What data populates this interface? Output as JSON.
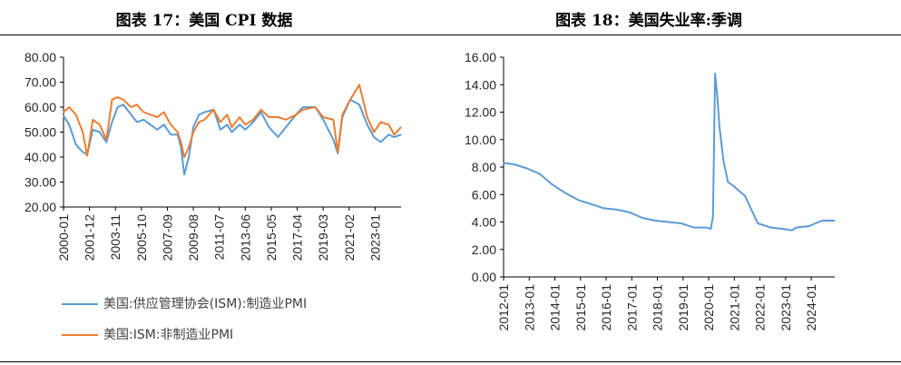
{
  "titles": {
    "left": "图表 17：美国 CPI 数据",
    "right": "图表 18：美国失业率:季调"
  },
  "colors": {
    "manufacturing": "#5b9bd5",
    "non_manufacturing": "#ed7d31",
    "unemployment": "#5b9bd5",
    "axis": "#000000"
  },
  "chart_data": [
    {
      "type": "line",
      "title": "图表 17：美国 CPI 数据",
      "xlabel": "",
      "ylabel": "",
      "ylim": [
        20,
        80
      ],
      "yticks": [
        "20.00",
        "30.00",
        "40.00",
        "50.00",
        "60.00",
        "70.00",
        "80.00"
      ],
      "xticks": [
        "2000-01",
        "2001-12",
        "2003-11",
        "2005-10",
        "2007-09",
        "2009-08",
        "2011-07",
        "2013-06",
        "2015-05",
        "2017-04",
        "2019-03",
        "2021-02",
        "2023-01"
      ],
      "xrange": [
        "2000-01",
        "2024-12"
      ],
      "grid": false,
      "legend_position": "bottom",
      "series": [
        {
          "name": "美国:供应管理协会(ISM):制造业PMI",
          "color": "#5b9bd5",
          "points": [
            [
              "2000-01",
              56.5
            ],
            [
              "2000-06",
              53
            ],
            [
              "2000-12",
              45
            ],
            [
              "2001-06",
              42
            ],
            [
              "2001-10",
              41
            ],
            [
              "2002-03",
              51
            ],
            [
              "2002-09",
              50
            ],
            [
              "2003-03",
              46
            ],
            [
              "2003-08",
              54
            ],
            [
              "2004-01",
              60
            ],
            [
              "2004-06",
              61
            ],
            [
              "2005-01",
              57
            ],
            [
              "2005-06",
              54
            ],
            [
              "2005-12",
              55
            ],
            [
              "2006-06",
              53
            ],
            [
              "2006-12",
              51
            ],
            [
              "2007-06",
              53
            ],
            [
              "2007-12",
              49
            ],
            [
              "2008-06",
              49
            ],
            [
              "2008-09",
              44
            ],
            [
              "2008-12",
              33
            ],
            [
              "2009-04",
              40
            ],
            [
              "2009-08",
              52
            ],
            [
              "2010-01",
              57
            ],
            [
              "2010-06",
              58
            ],
            [
              "2011-02",
              59
            ],
            [
              "2011-08",
              51
            ],
            [
              "2012-02",
              53
            ],
            [
              "2012-06",
              50
            ],
            [
              "2013-01",
              53
            ],
            [
              "2013-06",
              51
            ],
            [
              "2014-01",
              54
            ],
            [
              "2014-08",
              58
            ],
            [
              "2015-03",
              52
            ],
            [
              "2015-11",
              48
            ],
            [
              "2016-06",
              52
            ],
            [
              "2017-03",
              57
            ],
            [
              "2017-09",
              60
            ],
            [
              "2018-08",
              60
            ],
            [
              "2019-03",
              55
            ],
            [
              "2019-12",
              47
            ],
            [
              "2020-04",
              41.5
            ],
            [
              "2020-08",
              56
            ],
            [
              "2021-03",
              63
            ],
            [
              "2021-11",
              61
            ],
            [
              "2022-06",
              53
            ],
            [
              "2022-12",
              48
            ],
            [
              "2023-06",
              46
            ],
            [
              "2024-01",
              49
            ],
            [
              "2024-06",
              48
            ],
            [
              "2024-12",
              49
            ]
          ]
        },
        {
          "name": "美国:ISM:非制造业PMI",
          "color": "#ed7d31",
          "points": [
            [
              "2000-01",
              58
            ],
            [
              "2000-06",
              60
            ],
            [
              "2000-12",
              57
            ],
            [
              "2001-06",
              50
            ],
            [
              "2001-10",
              40.5
            ],
            [
              "2002-03",
              55
            ],
            [
              "2002-09",
              53
            ],
            [
              "2003-03",
              47
            ],
            [
              "2003-08",
              63
            ],
            [
              "2004-01",
              64
            ],
            [
              "2004-06",
              63
            ],
            [
              "2005-01",
              60
            ],
            [
              "2005-06",
              61
            ],
            [
              "2005-12",
              58
            ],
            [
              "2006-06",
              57
            ],
            [
              "2006-12",
              56
            ],
            [
              "2007-06",
              58
            ],
            [
              "2007-12",
              53
            ],
            [
              "2008-06",
              50
            ],
            [
              "2008-09",
              46
            ],
            [
              "2008-12",
              40
            ],
            [
              "2009-04",
              44
            ],
            [
              "2009-08",
              50
            ],
            [
              "2010-01",
              54
            ],
            [
              "2010-06",
              55
            ],
            [
              "2011-02",
              59
            ],
            [
              "2011-08",
              54
            ],
            [
              "2012-02",
              57
            ],
            [
              "2012-06",
              52
            ],
            [
              "2013-01",
              56
            ],
            [
              "2013-06",
              53
            ],
            [
              "2014-01",
              55
            ],
            [
              "2014-08",
              59
            ],
            [
              "2015-03",
              56
            ],
            [
              "2015-11",
              56
            ],
            [
              "2016-06",
              55
            ],
            [
              "2017-03",
              57
            ],
            [
              "2017-09",
              59
            ],
            [
              "2018-08",
              60
            ],
            [
              "2019-03",
              56
            ],
            [
              "2019-12",
              55
            ],
            [
              "2020-04",
              41.8
            ],
            [
              "2020-08",
              57
            ],
            [
              "2021-03",
              63
            ],
            [
              "2021-11",
              69
            ],
            [
              "2022-06",
              56
            ],
            [
              "2022-12",
              50
            ],
            [
              "2023-06",
              54
            ],
            [
              "2024-01",
              53
            ],
            [
              "2024-06",
              49
            ],
            [
              "2024-12",
              52
            ]
          ]
        }
      ]
    },
    {
      "type": "line",
      "title": "图表 18：美国失业率:季调",
      "xlabel": "",
      "ylabel": "",
      "ylim": [
        0,
        16
      ],
      "yticks": [
        "0.00",
        "2.00",
        "4.00",
        "6.00",
        "8.00",
        "10.00",
        "12.00",
        "14.00",
        "16.00"
      ],
      "xticks": [
        "2012-01",
        "2013-01",
        "2014-01",
        "2015-01",
        "2016-01",
        "2017-01",
        "2018-01",
        "2019-01",
        "2020-01",
        "2021-01",
        "2022-01",
        "2023-01",
        "2024-01"
      ],
      "xrange": [
        "2012-01",
        "2024-12"
      ],
      "grid": false,
      "series": [
        {
          "name": "",
          "color": "#5b9bd5",
          "points": [
            [
              "2012-01",
              8.3
            ],
            [
              "2012-06",
              8.2
            ],
            [
              "2012-12",
              7.9
            ],
            [
              "2013-06",
              7.5
            ],
            [
              "2013-12",
              6.7
            ],
            [
              "2014-06",
              6.1
            ],
            [
              "2014-12",
              5.6
            ],
            [
              "2015-06",
              5.3
            ],
            [
              "2015-12",
              5.0
            ],
            [
              "2016-06",
              4.9
            ],
            [
              "2016-12",
              4.7
            ],
            [
              "2017-06",
              4.3
            ],
            [
              "2017-12",
              4.1
            ],
            [
              "2018-06",
              4.0
            ],
            [
              "2018-12",
              3.9
            ],
            [
              "2019-06",
              3.6
            ],
            [
              "2019-12",
              3.6
            ],
            [
              "2020-02",
              3.5
            ],
            [
              "2020-03",
              4.4
            ],
            [
              "2020-04",
              14.8
            ],
            [
              "2020-05",
              13.2
            ],
            [
              "2020-06",
              11.0
            ],
            [
              "2020-08",
              8.4
            ],
            [
              "2020-10",
              6.9
            ],
            [
              "2020-12",
              6.7
            ],
            [
              "2021-06",
              5.9
            ],
            [
              "2021-12",
              3.9
            ],
            [
              "2022-06",
              3.6
            ],
            [
              "2022-12",
              3.5
            ],
            [
              "2023-04",
              3.4
            ],
            [
              "2023-06",
              3.6
            ],
            [
              "2023-12",
              3.7
            ],
            [
              "2024-06",
              4.1
            ],
            [
              "2024-12",
              4.1
            ]
          ]
        }
      ]
    }
  ],
  "legend": {
    "item1": "美国:供应管理协会(ISM):制造业PMI",
    "item2": "美国:ISM:非制造业PMI"
  }
}
